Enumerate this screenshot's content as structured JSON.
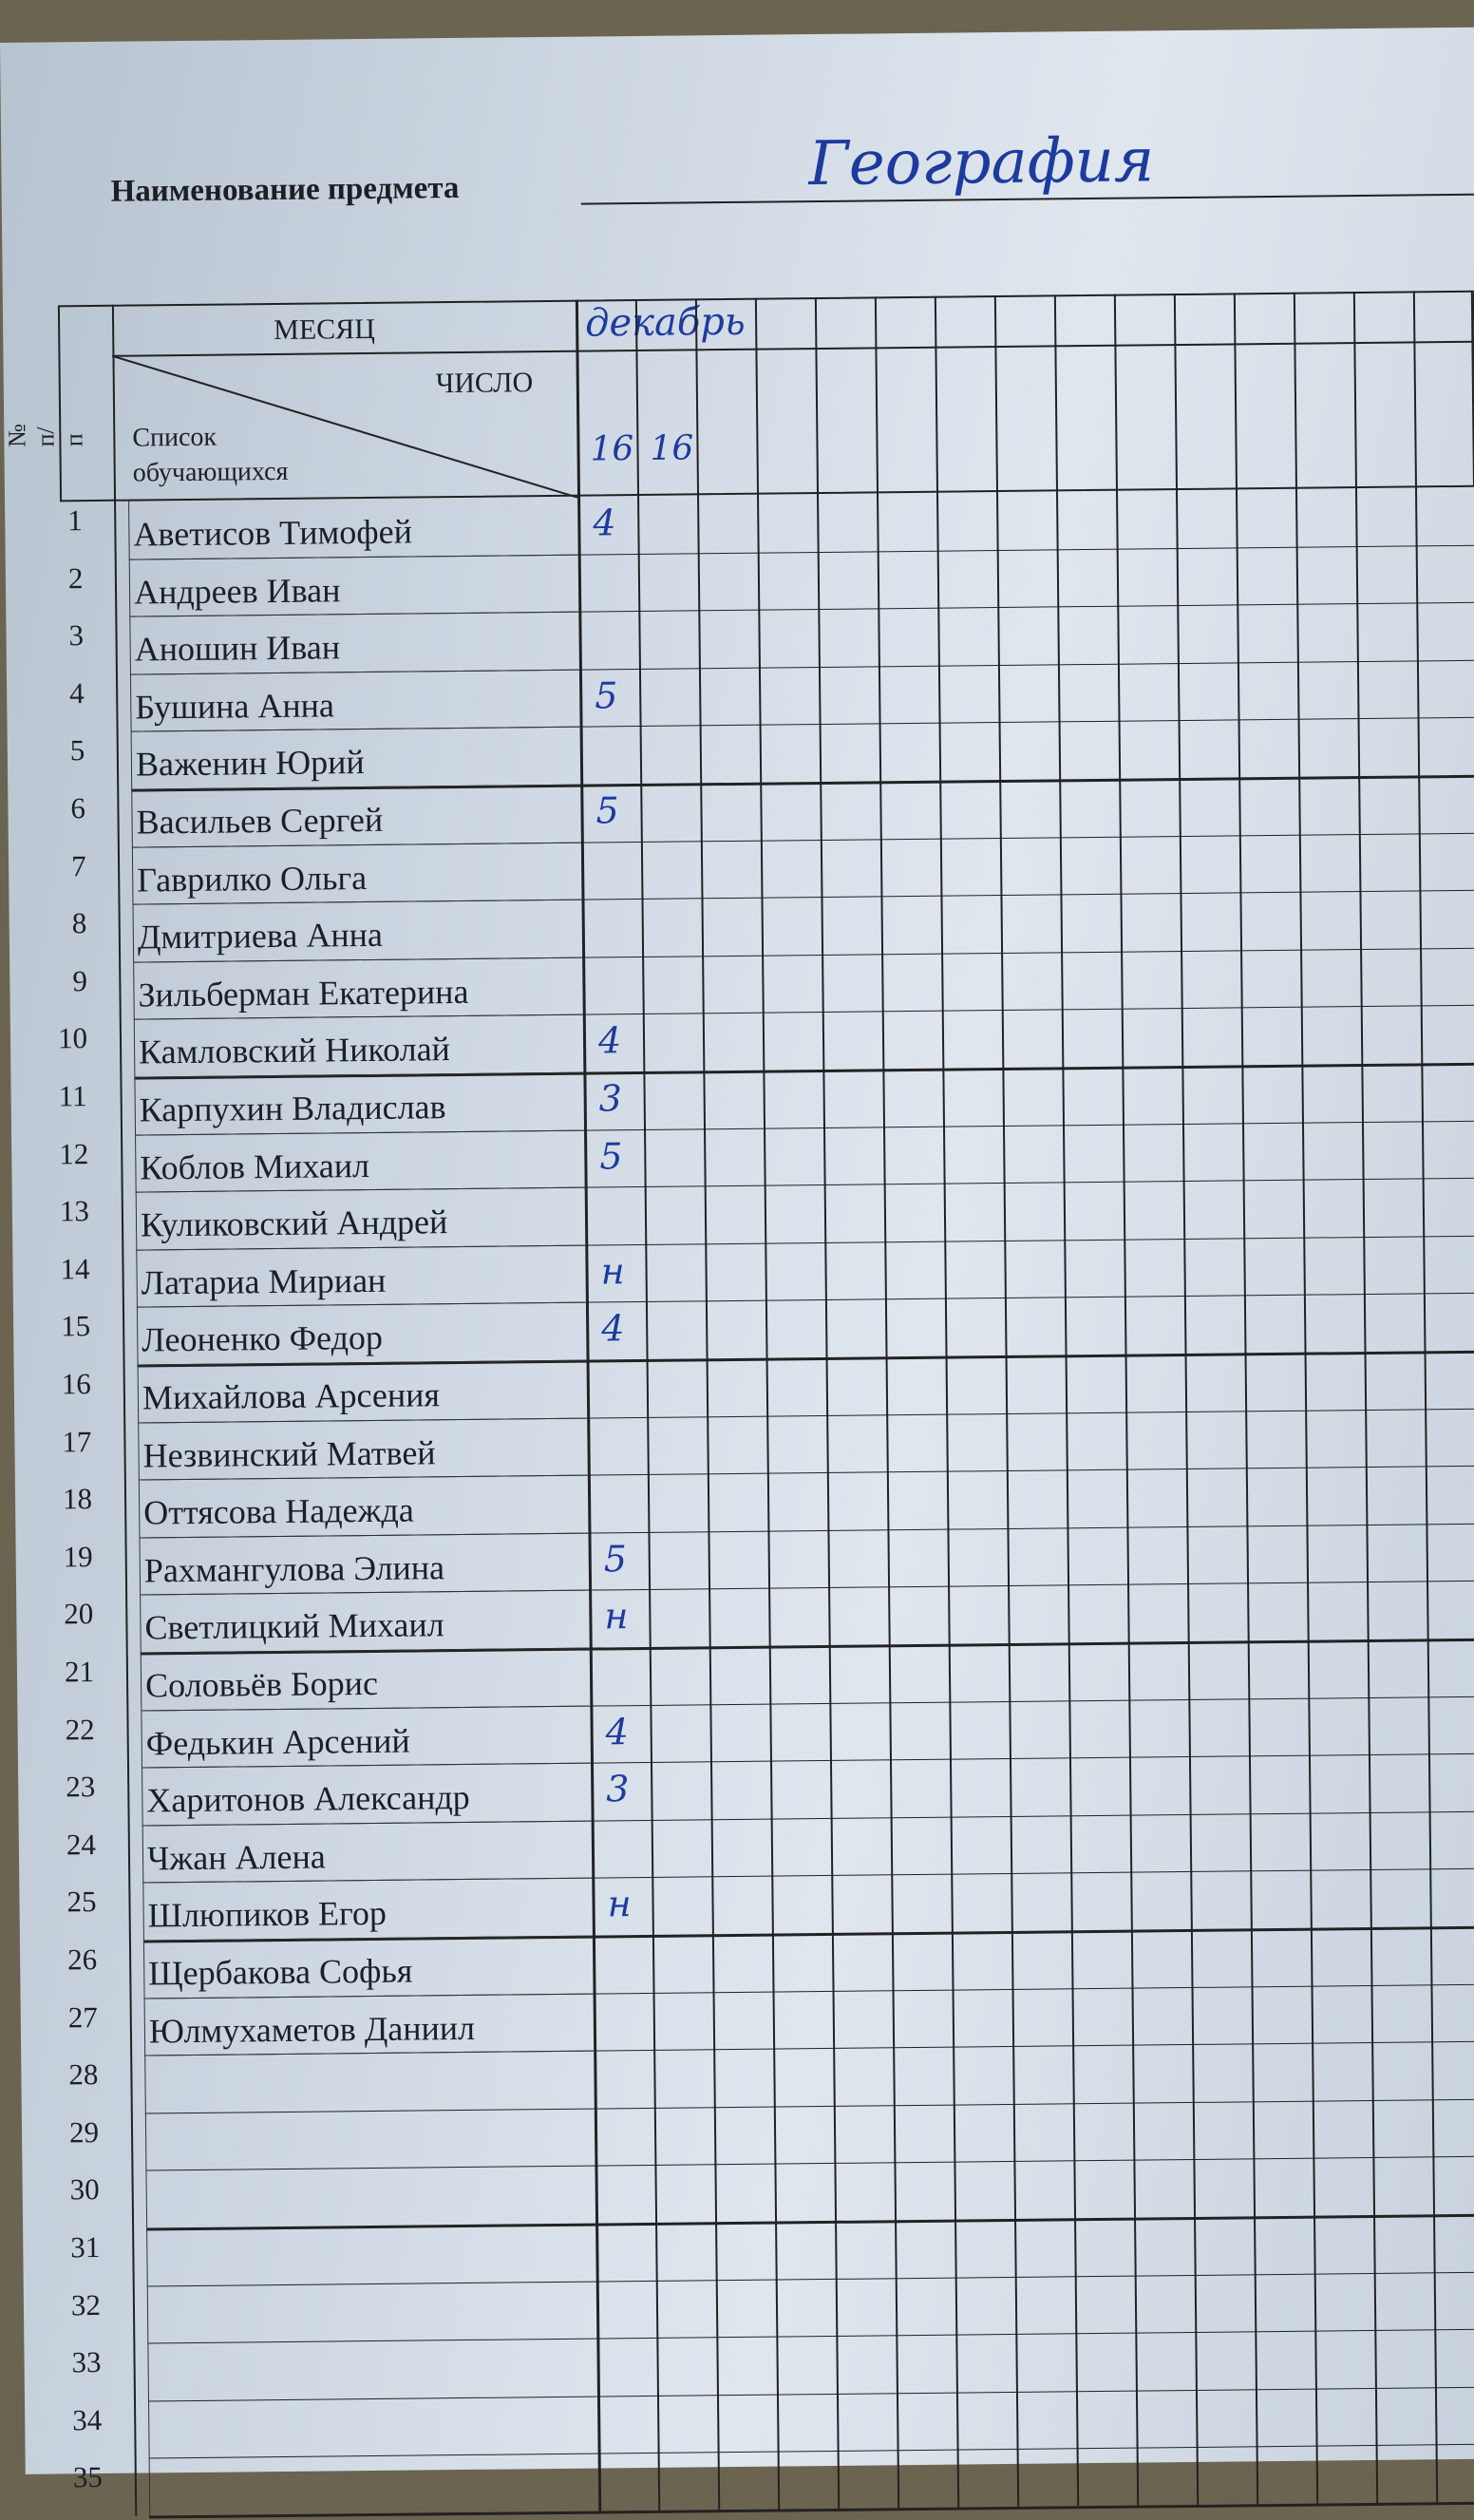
{
  "header": {
    "subject_label": "Наименование предмета",
    "subject_value": "География",
    "month_label": "МЕСЯЦ",
    "day_label": "ЧИСЛО",
    "list_label_1": "Список",
    "list_label_2": "обучающихся",
    "number_label": "№ п/п",
    "month_value": "декабрь",
    "days": [
      "16",
      "16"
    ]
  },
  "students": [
    {
      "n": "1",
      "name": "Аветисов Тимофей",
      "grade": "4"
    },
    {
      "n": "2",
      "name": "Андреев Иван",
      "grade": ""
    },
    {
      "n": "3",
      "name": "Аношин Иван",
      "grade": ""
    },
    {
      "n": "4",
      "name": "Бушина Анна",
      "grade": "5"
    },
    {
      "n": "5",
      "name": "Важенин Юрий",
      "grade": ""
    },
    {
      "n": "6",
      "name": "Васильев Сергей",
      "grade": "5"
    },
    {
      "n": "7",
      "name": "Гаврилко Ольга",
      "grade": ""
    },
    {
      "n": "8",
      "name": "Дмитриева Анна",
      "grade": ""
    },
    {
      "n": "9",
      "name": "Зильберман Екатерина",
      "grade": ""
    },
    {
      "n": "10",
      "name": "Камловский Николай",
      "grade": "4"
    },
    {
      "n": "11",
      "name": "Карпухин Владислав",
      "grade": "3"
    },
    {
      "n": "12",
      "name": "Коблов Михаил",
      "grade": "5"
    },
    {
      "n": "13",
      "name": "Куликовский Андрей",
      "grade": ""
    },
    {
      "n": "14",
      "name": "Латариа Мириан",
      "grade": "н"
    },
    {
      "n": "15",
      "name": "Леоненко Федор",
      "grade": "4"
    },
    {
      "n": "16",
      "name": "Михайлова Арсения",
      "grade": ""
    },
    {
      "n": "17",
      "name": "Незвинский Матвей",
      "grade": ""
    },
    {
      "n": "18",
      "name": "Оттясова Надежда",
      "grade": ""
    },
    {
      "n": "19",
      "name": "Рахмангулова Элина",
      "grade": "5"
    },
    {
      "n": "20",
      "name": "Светлицкий Михаил",
      "grade": "н"
    },
    {
      "n": "21",
      "name": "Соловьёв Борис",
      "grade": ""
    },
    {
      "n": "22",
      "name": "Федькин Арсений",
      "grade": "4"
    },
    {
      "n": "23",
      "name": "Харитонов Александр",
      "grade": "3"
    },
    {
      "n": "24",
      "name": "Чжан Алена",
      "grade": ""
    },
    {
      "n": "25",
      "name": "Шлюпиков Егор",
      "grade": "н"
    },
    {
      "n": "26",
      "name": "Щербакова Софья",
      "grade": ""
    },
    {
      "n": "27",
      "name": "Юлмухаметов Даниил",
      "grade": ""
    },
    {
      "n": "28",
      "name": "",
      "grade": ""
    },
    {
      "n": "29",
      "name": "",
      "grade": ""
    },
    {
      "n": "30",
      "name": "",
      "grade": ""
    },
    {
      "n": "31",
      "name": "",
      "grade": ""
    },
    {
      "n": "32",
      "name": "",
      "grade": ""
    },
    {
      "n": "33",
      "name": "",
      "grade": ""
    },
    {
      "n": "34",
      "name": "",
      "grade": ""
    },
    {
      "n": "35",
      "name": "",
      "grade": ""
    }
  ],
  "colors": {
    "ink": "#1d3b9e",
    "paper": "#d3dce6",
    "print": "#1c1f26"
  }
}
